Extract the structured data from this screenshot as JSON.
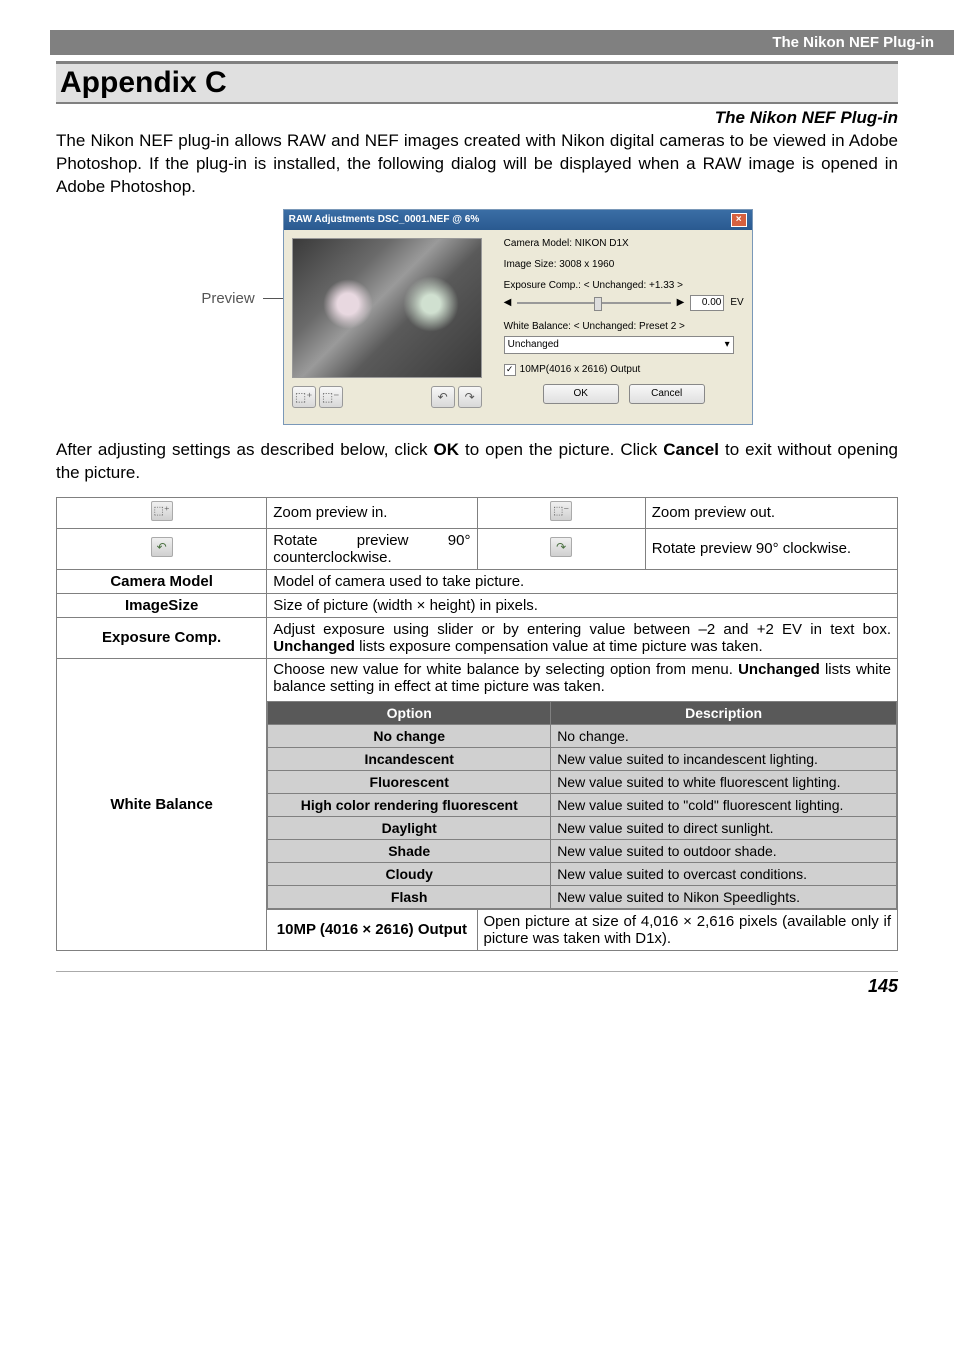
{
  "header": {
    "section": "The Nikon NEF Plug-in"
  },
  "title": "Appendix C",
  "subtitle": "The Nikon NEF Plug-in",
  "intro": "The Nikon NEF plug-in allows RAW and NEF images created with Nikon digital cameras to be viewed in Adobe Photoshop. If the plug-in is installed, the following dialog will be displayed when a RAW image is opened in Adobe Photoshop.",
  "preview_label": "Preview",
  "dialog": {
    "title": "RAW Adjustments DSC_0001.NEF @ 6%",
    "camera_model": "Camera Model: NIKON D1X",
    "image_size": "Image Size: 3008 x 1960",
    "exp_comp": "Exposure Comp.: < Unchanged: +1.33 >",
    "ev_value": "0.00",
    "ev_unit": "EV",
    "wb_label": "White Balance: < Unchanged: Preset 2 >",
    "wb_value": "Unchanged",
    "output_chk": "10MP(4016 x 2616) Output",
    "ok": "OK",
    "cancel": "Cancel"
  },
  "after_text_pre": "After adjusting settings as described below, click ",
  "after_text_ok": "OK",
  "after_text_mid": " to open the picture. Click ",
  "after_text_cancel": "Cancel",
  "after_text_post": " to exit without opening the picture.",
  "table": {
    "zoom_in_desc": "Zoom preview in.",
    "zoom_out_desc": "Zoom preview out.",
    "rot_ccw_desc": "Rotate preview 90° counterclockwise.",
    "rot_cw_desc": "Rotate preview 90° clockwise.",
    "camera_model_label": "Camera Model",
    "camera_model_desc": "Model of camera used to take picture.",
    "image_size_label": "ImageSize",
    "image_size_desc": "Size of picture (width × height) in pixels.",
    "exp_label": "Exposure Comp.",
    "exp_desc_pre": "Adjust exposure using slider or by entering value between –2 and +2 EV in text box. ",
    "exp_desc_bold": "Unchanged",
    "exp_desc_post": " lists exposure compensation value at time picture was taken.",
    "wb_label": "White Balance",
    "wb_note_pre": "Choose new value for white balance by selecting option from menu. ",
    "wb_note_bold": "Unchanged",
    "wb_note_post": " lists white balance setting in effect at time picture was taken.",
    "wb_header_option": "Option",
    "wb_header_desc": "Description",
    "wb_rows": [
      {
        "option": "No change",
        "desc": "No change."
      },
      {
        "option": "Incandescent",
        "desc": "New value suited to incandescent lighting."
      },
      {
        "option": "Fluorescent",
        "desc": "New value suited to white fluorescent lighting."
      },
      {
        "option": "High color rendering fluorescent",
        "desc": "New value suited to \"cold\" fluorescent lighting."
      },
      {
        "option": "Daylight",
        "desc": "New value suited to direct sunlight."
      },
      {
        "option": "Shade",
        "desc": "New value suited to outdoor shade."
      },
      {
        "option": "Cloudy",
        "desc": "New value suited to overcast conditions."
      },
      {
        "option": "Flash",
        "desc": "New value suited to Nikon Speedlights."
      }
    ],
    "output_label": "10MP (4016 × 2616) Output",
    "output_desc": "Open picture at size of 4,016 × 2,616 pixels (available only if picture was taken with D1x)."
  },
  "page_number": "145",
  "colors": {
    "header_bg": "#808080",
    "title_bg": "#e0e0e0",
    "border": "#808080",
    "sub_header_bg": "#595959",
    "sub_row_bg": "#d0d0d0"
  }
}
